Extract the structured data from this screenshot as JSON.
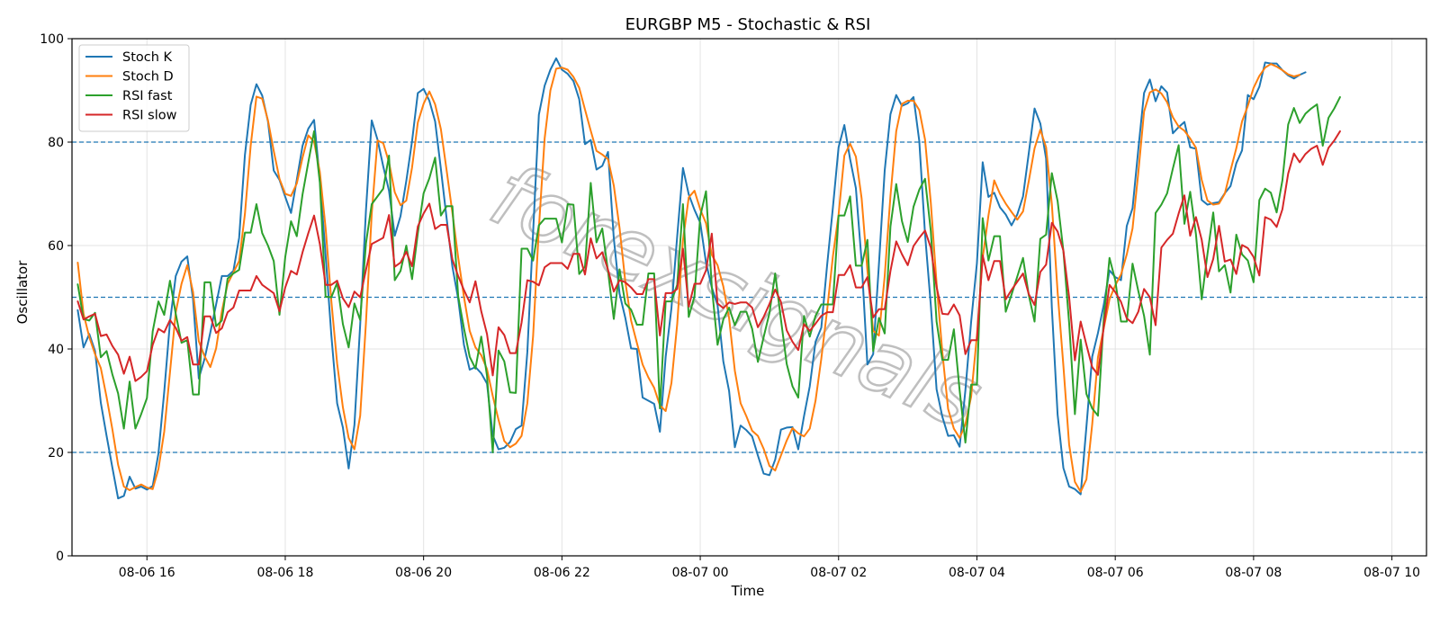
{
  "watermark": "forexsignals",
  "chart_data": {
    "type": "line",
    "title": "EURGBP M5 - Stochastic & RSI",
    "xlabel": "Time",
    "ylabel": "Oscillator",
    "ylim": [
      0,
      100
    ],
    "xlim": [
      "08-06 14:55",
      "08-07 10:30"
    ],
    "x_start": "08-06 15:00",
    "x_step_minutes": 5,
    "x_ticks": [
      "08-06 16",
      "08-06 18",
      "08-06 20",
      "08-06 22",
      "08-07 00",
      "08-07 02",
      "08-07 04",
      "08-07 06",
      "08-07 08",
      "08-07 10"
    ],
    "y_ticks": [
      0,
      20,
      40,
      60,
      80,
      100
    ],
    "reference_lines": [
      80,
      50,
      20
    ],
    "grid": true,
    "legend_position": "top-left",
    "series": [
      {
        "name": "Stoch K",
        "color": "#1f77b4",
        "values": [
          47.5,
          40.3,
          42.9,
          39.6,
          29.6,
          23.2,
          17.1,
          11.1,
          11.6,
          15.3,
          13.0,
          13.4,
          12.8,
          13.5,
          19.8,
          31.7,
          45.2,
          54.1,
          56.9,
          57.9,
          49.6,
          34.3,
          38.1,
          43.2,
          48.6,
          54.1,
          54.1,
          55.1,
          61.5,
          77.5,
          87.2,
          91.2,
          89.0,
          84.0,
          74.5,
          72.7,
          69.4,
          66.3,
          72.7,
          79.3,
          82.6,
          84.3,
          72.8,
          58.1,
          42.6,
          29.5,
          24.8,
          16.9,
          25.3,
          44.7,
          66.8,
          84.2,
          80.5,
          75.3,
          70.6,
          61.9,
          65.7,
          72.5,
          80.2,
          89.5,
          90.3,
          88.0,
          84.0,
          74.8,
          65.2,
          55.9,
          49.7,
          40.8,
          36.0,
          36.5,
          35.3,
          33.3,
          23.3,
          20.6,
          20.9,
          22.0,
          24.5,
          25.2,
          39.4,
          62.5,
          85.3,
          90.9,
          94.0,
          96.2,
          94.0,
          93.2,
          91.8,
          88.3,
          79.6,
          80.4,
          74.7,
          75.4,
          78.1,
          61.4,
          50.7,
          46.0,
          40.1,
          40.0,
          30.6,
          30.0,
          29.4,
          24.0,
          38.5,
          47.9,
          61.8,
          75.0,
          69.9,
          66.9,
          64.4,
          56.7,
          51.9,
          48.5,
          37.6,
          31.9,
          21.0,
          25.2,
          24.3,
          23.1,
          19.4,
          15.9,
          15.6,
          18.6,
          24.4,
          24.8,
          24.9,
          20.6,
          27.0,
          32.8,
          41.4,
          44.1,
          56.1,
          67.2,
          79.0,
          83.3,
          76.7,
          71.1,
          56.9,
          37.0,
          39.0,
          56.4,
          74.5,
          85.4,
          89.1,
          87.0,
          87.5,
          88.7,
          80.2,
          62.2,
          48.5,
          32.2,
          26.9,
          23.2,
          23.3,
          21.1,
          32.0,
          45.3,
          56.6,
          76.1,
          69.4,
          70.2,
          67.4,
          66.0,
          63.9,
          66.0,
          69.5,
          77.9,
          86.5,
          83.6,
          76.8,
          48.0,
          27.3,
          17.0,
          13.4,
          12.9,
          11.9,
          25.0,
          38.5,
          43.1,
          48.5,
          55.2,
          53.9,
          53.3,
          63.8,
          67.2,
          78.6,
          89.5,
          92.1,
          87.9,
          90.8,
          89.6,
          81.7,
          82.9,
          83.9,
          79.0,
          78.7,
          68.8,
          67.9,
          68.2,
          68.4,
          70.1,
          71.5,
          75.9,
          78.4,
          89.1,
          88.3,
          90.7,
          95.4,
          95.2,
          95.2,
          93.9,
          92.9,
          92.3,
          93.0,
          93.5
        ]
      },
      {
        "name": "Stoch D",
        "color": "#ff7f0e",
        "values": [
          56.7,
          46.8,
          42.3,
          39.0,
          36.3,
          30.7,
          24.5,
          17.6,
          13.4,
          12.7,
          13.3,
          13.8,
          13.2,
          12.9,
          16.8,
          24.0,
          35.5,
          47.1,
          52.6,
          56.2,
          51.0,
          41.5,
          38.6,
          36.5,
          40.1,
          47.3,
          52.6,
          54.8,
          57.0,
          66.1,
          79.3,
          88.8,
          88.4,
          84.2,
          78.3,
          72.9,
          70.0,
          69.6,
          72.0,
          77.0,
          81.3,
          80.1,
          74.2,
          63.4,
          49.2,
          37.2,
          28.7,
          22.8,
          20.6,
          27.1,
          45.1,
          66.1,
          80.3,
          79.8,
          76.1,
          70.3,
          67.8,
          68.7,
          75.1,
          83.8,
          87.4,
          89.8,
          87.3,
          82.5,
          74.5,
          66.3,
          57.7,
          50.1,
          43.5,
          40.3,
          38.8,
          36.1,
          30.9,
          26.3,
          22.2,
          21.0,
          21.7,
          23.2,
          29.5,
          42.5,
          63.3,
          80.7,
          90.0,
          94.2,
          94.4,
          94.0,
          92.6,
          90.5,
          86.3,
          82.2,
          78.3,
          77.6,
          76.7,
          71.6,
          63.4,
          53.0,
          45.5,
          41.2,
          37.0,
          34.5,
          32.5,
          29.1,
          28.0,
          33.4,
          44.8,
          61.0,
          69.3,
          70.6,
          67.0,
          64.3,
          58.2,
          56.2,
          52.1,
          46.0,
          35.8,
          29.5,
          27.0,
          24.2,
          23.2,
          20.7,
          17.4,
          16.5,
          19.4,
          22.3,
          24.7,
          23.7,
          23.1,
          24.6,
          30.0,
          38.1,
          47.4,
          57.8,
          66.0,
          77.4,
          79.7,
          77.2,
          69.1,
          55.2,
          43.5,
          42.6,
          54.1,
          69.6,
          82.1,
          87.4,
          88.0,
          88.0,
          86.2,
          80.5,
          68.3,
          52.7,
          39.4,
          28.4,
          24.6,
          22.8,
          25.4,
          30.8,
          42.6,
          57.6,
          65.8,
          72.6,
          70.0,
          68.1,
          66.5,
          65.0,
          66.6,
          72.5,
          78.8,
          82.4,
          79.0,
          68.0,
          51.0,
          36.8,
          21.5,
          14.3,
          12.4,
          14.8,
          25.4,
          38.4,
          44.0,
          49.6,
          52.3,
          54.4,
          58.3,
          63.3,
          74.1,
          85.9,
          89.6,
          90.2,
          89.4,
          87.7,
          84.8,
          83.0,
          82.2,
          80.7,
          78.9,
          72.7,
          68.7,
          67.9,
          68.1,
          70.0,
          74.5,
          78.8,
          84.0,
          87.0,
          90.5,
          92.8,
          94.4,
          95.1,
          94.6,
          93.9,
          93.1,
          92.7,
          93.0
        ]
      },
      {
        "name": "RSI fast",
        "color": "#2ca02c",
        "values": [
          52.5,
          45.8,
          45.5,
          47.0,
          38.4,
          39.6,
          35.1,
          31.4,
          24.6,
          33.7,
          24.6,
          27.4,
          30.5,
          43.4,
          49.2,
          46.6,
          53.2,
          46.8,
          41.2,
          41.7,
          31.2,
          31.2,
          52.9,
          52.9,
          44.4,
          45.5,
          53.6,
          54.6,
          55.3,
          62.5,
          62.5,
          68.0,
          62.4,
          60.0,
          57.0,
          46.6,
          57.8,
          64.7,
          61.8,
          69.9,
          76.1,
          82.1,
          72.2,
          50.1,
          50.0,
          52.8,
          44.8,
          40.3,
          48.8,
          45.6,
          60.4,
          68.0,
          69.5,
          71.0,
          77.4,
          53.3,
          55.1,
          60.0,
          53.5,
          62.4,
          70.1,
          73.0,
          77.0,
          65.8,
          67.6,
          67.6,
          50.2,
          44.0,
          38.5,
          36.2,
          42.4,
          34.8,
          20.0,
          39.7,
          37.6,
          31.6,
          31.5,
          59.4,
          59.4,
          57.1,
          63.9,
          65.2,
          65.2,
          65.2,
          60.6,
          68.0,
          67.9,
          54.5,
          55.9,
          72.1,
          60.6,
          63.3,
          55.0,
          45.8,
          55.4,
          48.8,
          47.6,
          44.7,
          44.7,
          54.6,
          54.6,
          28.5,
          49.2,
          49.2,
          52.4,
          68.0,
          46.2,
          50.2,
          65.7,
          70.5,
          52.1,
          40.8,
          45.7,
          48.0,
          44.6,
          47.2,
          47.2,
          43.9,
          37.5,
          42.3,
          46.9,
          54.6,
          45.7,
          37.1,
          32.8,
          30.6,
          46.4,
          42.4,
          46.4,
          48.6,
          48.6,
          48.6,
          65.8,
          65.8,
          69.5,
          56.1,
          56.1,
          61.1,
          39.6,
          46.0,
          43.0,
          63.7,
          71.9,
          64.7,
          60.7,
          67.5,
          70.8,
          72.9,
          62.8,
          45.3,
          37.9,
          37.9,
          43.8,
          32.0,
          21.9,
          33.1,
          33.1,
          65.3,
          57.1,
          61.8,
          61.8,
          47.2,
          50.5,
          54.0,
          57.6,
          50.4,
          45.3,
          61.3,
          62.1,
          74.0,
          68.6,
          59.0,
          45.0,
          27.4,
          41.8,
          31.3,
          28.5,
          27.1,
          45.7,
          57.6,
          53.3,
          45.3,
          45.3,
          56.5,
          51.2,
          46.4,
          38.9,
          66.3,
          67.9,
          70.1,
          74.9,
          79.4,
          64.2,
          70.4,
          62.2,
          49.6,
          58.4,
          66.4,
          55.0,
          56.2,
          50.9,
          62.1,
          58.3,
          57.1,
          52.9,
          68.8,
          71.0,
          70.2,
          66.4,
          72.6,
          83.4,
          86.6,
          83.7,
          85.5,
          86.5,
          87.3,
          79.3,
          84.7,
          86.5,
          88.7
        ]
      },
      {
        "name": "RSI slow",
        "color": "#d62728",
        "values": [
          49.2,
          45.7,
          46.3,
          46.8,
          42.5,
          42.8,
          40.6,
          38.9,
          35.2,
          38.5,
          33.8,
          34.6,
          35.7,
          40.8,
          43.9,
          43.2,
          45.6,
          44.1,
          41.6,
          42.3,
          37.0,
          37.0,
          46.3,
          46.3,
          43.1,
          44.0,
          47.1,
          48.0,
          51.3,
          51.3,
          51.3,
          54.1,
          52.4,
          51.6,
          50.8,
          47.3,
          51.9,
          55.1,
          54.4,
          58.7,
          62.4,
          65.8,
          60.3,
          52.4,
          52.4,
          53.2,
          49.8,
          48.1,
          51.1,
          50.0,
          55.3,
          60.3,
          60.9,
          61.5,
          65.9,
          55.9,
          56.7,
          58.8,
          56.0,
          63.7,
          66.2,
          68.1,
          63.2,
          64.0,
          64.0,
          57.3,
          54.1,
          51.4,
          49.0,
          53.1,
          47.3,
          42.9,
          34.9,
          44.2,
          42.7,
          39.2,
          39.2,
          45.1,
          53.3,
          53.0,
          52.3,
          55.8,
          56.6,
          56.6,
          56.6,
          55.5,
          58.4,
          58.4,
          54.4,
          61.4,
          57.5,
          58.7,
          55.3,
          51.1,
          53.3,
          52.9,
          51.9,
          50.6,
          50.6,
          53.5,
          53.5,
          42.6,
          50.8,
          50.8,
          51.6,
          59.4,
          48.2,
          52.6,
          52.6,
          55.2,
          62.3,
          48.8,
          47.9,
          49.0,
          48.7,
          49.0,
          49.0,
          48.0,
          44.2,
          46.2,
          48.7,
          51.5,
          49.1,
          43.6,
          41.4,
          39.8,
          44.8,
          43.5,
          44.9,
          46.4,
          47.1,
          47.1,
          54.3,
          54.3,
          56.2,
          51.9,
          51.9,
          53.9,
          46.1,
          47.7,
          47.7,
          55.1,
          60.8,
          58.3,
          56.2,
          59.9,
          61.5,
          62.9,
          59.6,
          52.0,
          46.8,
          46.7,
          48.6,
          46.5,
          39.0,
          41.7,
          41.7,
          58.1,
          53.3,
          57.0,
          57.0,
          49.6,
          51.4,
          53.0,
          54.6,
          50.6,
          48.5,
          54.9,
          56.3,
          64.4,
          62.7,
          59.0,
          50.0,
          37.8,
          45.3,
          40.8,
          36.5,
          35.0,
          44.2,
          52.4,
          51.0,
          49.1,
          45.9,
          45.0,
          47.2,
          51.6,
          50.0,
          44.6,
          59.6,
          61.1,
          62.3,
          66.2,
          69.7,
          61.9,
          65.5,
          61.1,
          53.9,
          57.4,
          63.8,
          56.9,
          57.3,
          54.5,
          60.1,
          59.5,
          57.8,
          54.2,
          65.5,
          65.0,
          63.6,
          67.0,
          73.9,
          77.8,
          76.1,
          77.7,
          78.7,
          79.3,
          75.6,
          78.9,
          80.3,
          82.1
        ]
      }
    ]
  }
}
